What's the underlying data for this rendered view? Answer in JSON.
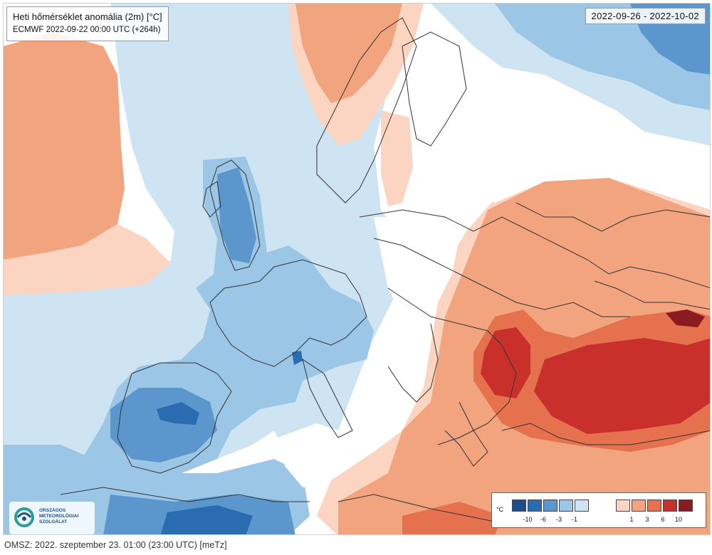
{
  "map": {
    "title": "Heti hőmérséklet anomália (2m) [°C]",
    "subtitle": "ECMWF 2022-09-22 00:00 UTC (+264h)",
    "date_range": "2022-09-26 - 2022-10-02",
    "region": "Europe",
    "colors": {
      "anom_n10": "#1d4d8c",
      "anom_n6": "#2b6cb0",
      "anom_n3": "#5b96cd",
      "anom_n1": "#9cc6e6",
      "anom_0_cool": "#cfe4f2",
      "neutral": "#ffffff",
      "anom_0_warm": "#fbd5c2",
      "anom_p1": "#f1a47e",
      "anom_p3": "#e5714f",
      "anom_p6": "#c9302c",
      "anom_p10": "#8c1a21",
      "borders": "#333333"
    }
  },
  "legend": {
    "unit": "°C",
    "ticks": [
      "-10",
      "-6",
      "-3",
      "-1",
      "1",
      "3",
      "6",
      "10"
    ],
    "cool_colors": [
      "#1d4d8c",
      "#2b6cb0",
      "#5b96cd",
      "#9cc6e6",
      "#cfe4f2"
    ],
    "warm_colors": [
      "#fbd5c2",
      "#f1a47e",
      "#e5714f",
      "#c9302c",
      "#8c1a21"
    ]
  },
  "logo": {
    "lines": [
      "ORSZÁGOS",
      "METEOROLÓGIAI",
      "SZOLGÁLAT"
    ]
  },
  "footer": {
    "text": "OMSZ: 2022. szeptember 23. 01:00 (23:00  UTC)  [meTz]"
  }
}
